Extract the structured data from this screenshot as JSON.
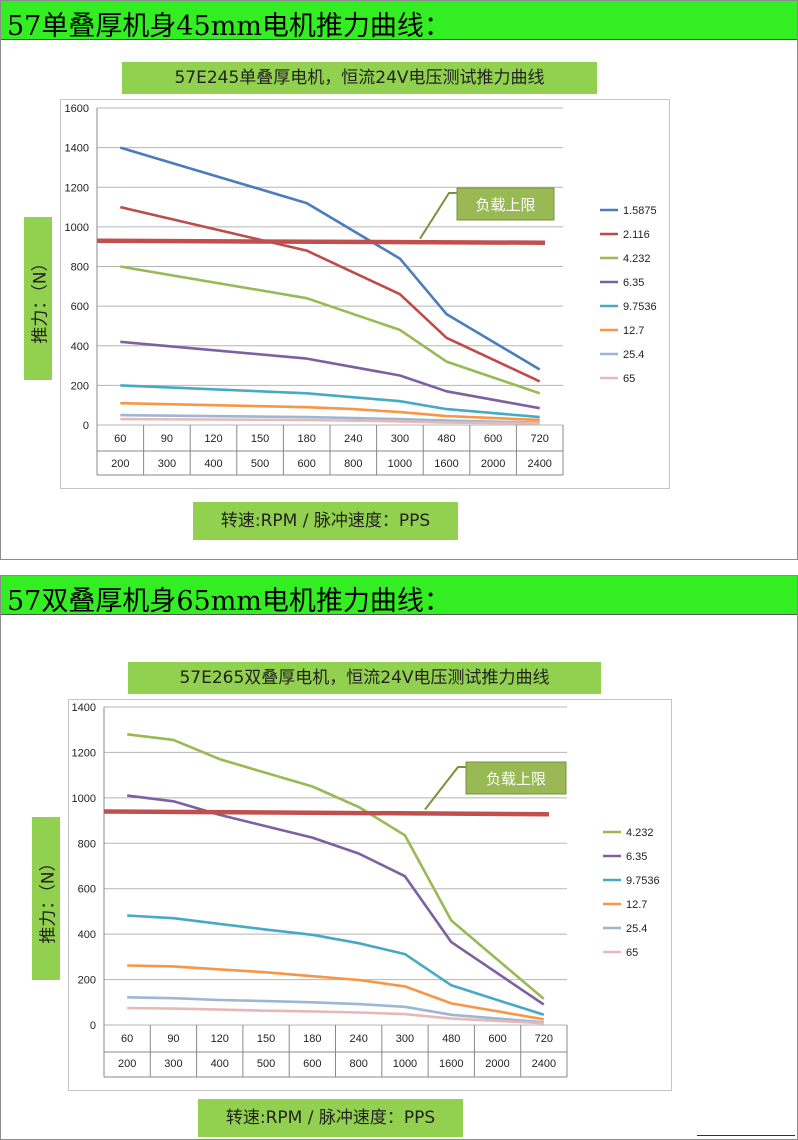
{
  "sections": [
    {
      "heading": "57单叠厚机身45mm电机推力曲线："
    },
    {
      "heading": "57双叠厚机身65mm电机推力曲线："
    }
  ],
  "colors": {
    "header_green": "#33ee22",
    "label_green": "#92d050",
    "limit_line": "#c0504d"
  },
  "chart_data": [
    {
      "type": "line",
      "title": "57E245单叠厚电机，恒流24V电压测试推力曲线",
      "ylabel": "推力：（N）",
      "xlabel": "转速:RPM / 脉冲速度：PPS",
      "x_rpm": [
        "60",
        "90",
        "120",
        "150",
        "180",
        "240",
        "300",
        "480",
        "600",
        "720"
      ],
      "x_pps": [
        "200",
        "300",
        "400",
        "500",
        "600",
        "800",
        "1000",
        "1600",
        "2000",
        "2400"
      ],
      "ylim": [
        0,
        1600
      ],
      "yticks": [
        0,
        200,
        400,
        600,
        800,
        1000,
        1200,
        1400,
        1600
      ],
      "limit": {
        "label": "负载上限",
        "value": 930,
        "end_value": 920
      },
      "legend_position": "right",
      "series": [
        {
          "name": "1.5875",
          "color": "#4a7ebb",
          "points": [
            [
              0,
              1400
            ],
            [
              4,
              1120
            ],
            [
              6,
              840
            ],
            [
              7,
              560
            ],
            [
              9,
              280
            ]
          ]
        },
        {
          "name": "2.116",
          "color": "#be4b48",
          "points": [
            [
              0,
              1100
            ],
            [
              4,
              880
            ],
            [
              6,
              660
            ],
            [
              7,
              440
            ],
            [
              9,
              220
            ]
          ]
        },
        {
          "name": "4.232",
          "color": "#98b954",
          "points": [
            [
              0,
              800
            ],
            [
              4,
              640
            ],
            [
              6,
              480
            ],
            [
              7,
              320
            ],
            [
              9,
              160
            ]
          ]
        },
        {
          "name": "6.35",
          "color": "#7d60a0",
          "points": [
            [
              0,
              420
            ],
            [
              4,
              335
            ],
            [
              6,
              250
            ],
            [
              7,
              170
            ],
            [
              9,
              85
            ]
          ]
        },
        {
          "name": "9.7536",
          "color": "#46aac5",
          "points": [
            [
              0,
              200
            ],
            [
              4,
              160
            ],
            [
              6,
              120
            ],
            [
              7,
              80
            ],
            [
              9,
              40
            ]
          ]
        },
        {
          "name": "12.7",
          "color": "#f79646",
          "points": [
            [
              0,
              110
            ],
            [
              4,
              90
            ],
            [
              5,
              80
            ],
            [
              6,
              65
            ],
            [
              7,
              45
            ],
            [
              9,
              25
            ]
          ]
        },
        {
          "name": "25.4",
          "color": "#9bb7d4",
          "points": [
            [
              0,
              50
            ],
            [
              4,
              40
            ],
            [
              6,
              30
            ],
            [
              7,
              22
            ],
            [
              9,
              12
            ]
          ]
        },
        {
          "name": "65",
          "color": "#e6b9b8",
          "points": [
            [
              0,
              30
            ],
            [
              4,
              25
            ],
            [
              6,
              18
            ],
            [
              7,
              12
            ],
            [
              9,
              8
            ]
          ]
        }
      ]
    },
    {
      "type": "line",
      "title": "57E265双叠厚电机，恒流24V电压测试推力曲线",
      "ylabel": "推力：（N）",
      "xlabel": "转速:RPM / 脉冲速度：PPS",
      "x_rpm": [
        "60",
        "90",
        "120",
        "150",
        "180",
        "240",
        "300",
        "480",
        "600",
        "720"
      ],
      "x_pps": [
        "200",
        "300",
        "400",
        "500",
        "600",
        "800",
        "1000",
        "1600",
        "2000",
        "2400"
      ],
      "ylim": [
        0,
        1400
      ],
      "yticks": [
        0,
        200,
        400,
        600,
        800,
        1000,
        1200,
        1400
      ],
      "limit": {
        "label": "负载上限",
        "value": 940,
        "end_value": 928
      },
      "legend_position": "right",
      "series": [
        {
          "name": "4.232",
          "color": "#98b954",
          "points": [
            [
              0,
              1280
            ],
            [
              1,
              1255
            ],
            [
              2,
              1170
            ],
            [
              3,
              1110
            ],
            [
              4,
              1050
            ],
            [
              5,
              960
            ],
            [
              6,
              835
            ],
            [
              7,
              460
            ],
            [
              9,
              115
            ]
          ]
        },
        {
          "name": "6.35",
          "color": "#7d60a0",
          "points": [
            [
              0,
              1010
            ],
            [
              1,
              985
            ],
            [
              2,
              925
            ],
            [
              3,
              875
            ],
            [
              4,
              825
            ],
            [
              5,
              755
            ],
            [
              6,
              655
            ],
            [
              7,
              365
            ],
            [
              9,
              90
            ]
          ]
        },
        {
          "name": "9.7536",
          "color": "#46aac5",
          "points": [
            [
              0,
              482
            ],
            [
              1,
              470
            ],
            [
              2,
              445
            ],
            [
              3,
              420
            ],
            [
              4,
              397
            ],
            [
              5,
              360
            ],
            [
              6,
              312
            ],
            [
              7,
              175
            ],
            [
              9,
              45
            ]
          ]
        },
        {
          "name": "12.7",
          "color": "#f79646",
          "points": [
            [
              0,
              262
            ],
            [
              1,
              258
            ],
            [
              2,
              245
            ],
            [
              3,
              232
            ],
            [
              4,
              215
            ],
            [
              5,
              198
            ],
            [
              6,
              170
            ],
            [
              7,
              95
            ],
            [
              9,
              25
            ]
          ]
        },
        {
          "name": "25.4",
          "color": "#9bb7d4",
          "points": [
            [
              0,
              122
            ],
            [
              1,
              118
            ],
            [
              2,
              110
            ],
            [
              3,
              105
            ],
            [
              4,
              100
            ],
            [
              5,
              92
            ],
            [
              6,
              80
            ],
            [
              7,
              45
            ],
            [
              9,
              12
            ]
          ]
        },
        {
          "name": "65",
          "color": "#e6b9b8",
          "points": [
            [
              0,
              75
            ],
            [
              1,
              72
            ],
            [
              2,
              68
            ],
            [
              3,
              63
            ],
            [
              4,
              60
            ],
            [
              5,
              55
            ],
            [
              6,
              48
            ],
            [
              7,
              28
            ],
            [
              9,
              8
            ]
          ]
        }
      ]
    }
  ]
}
